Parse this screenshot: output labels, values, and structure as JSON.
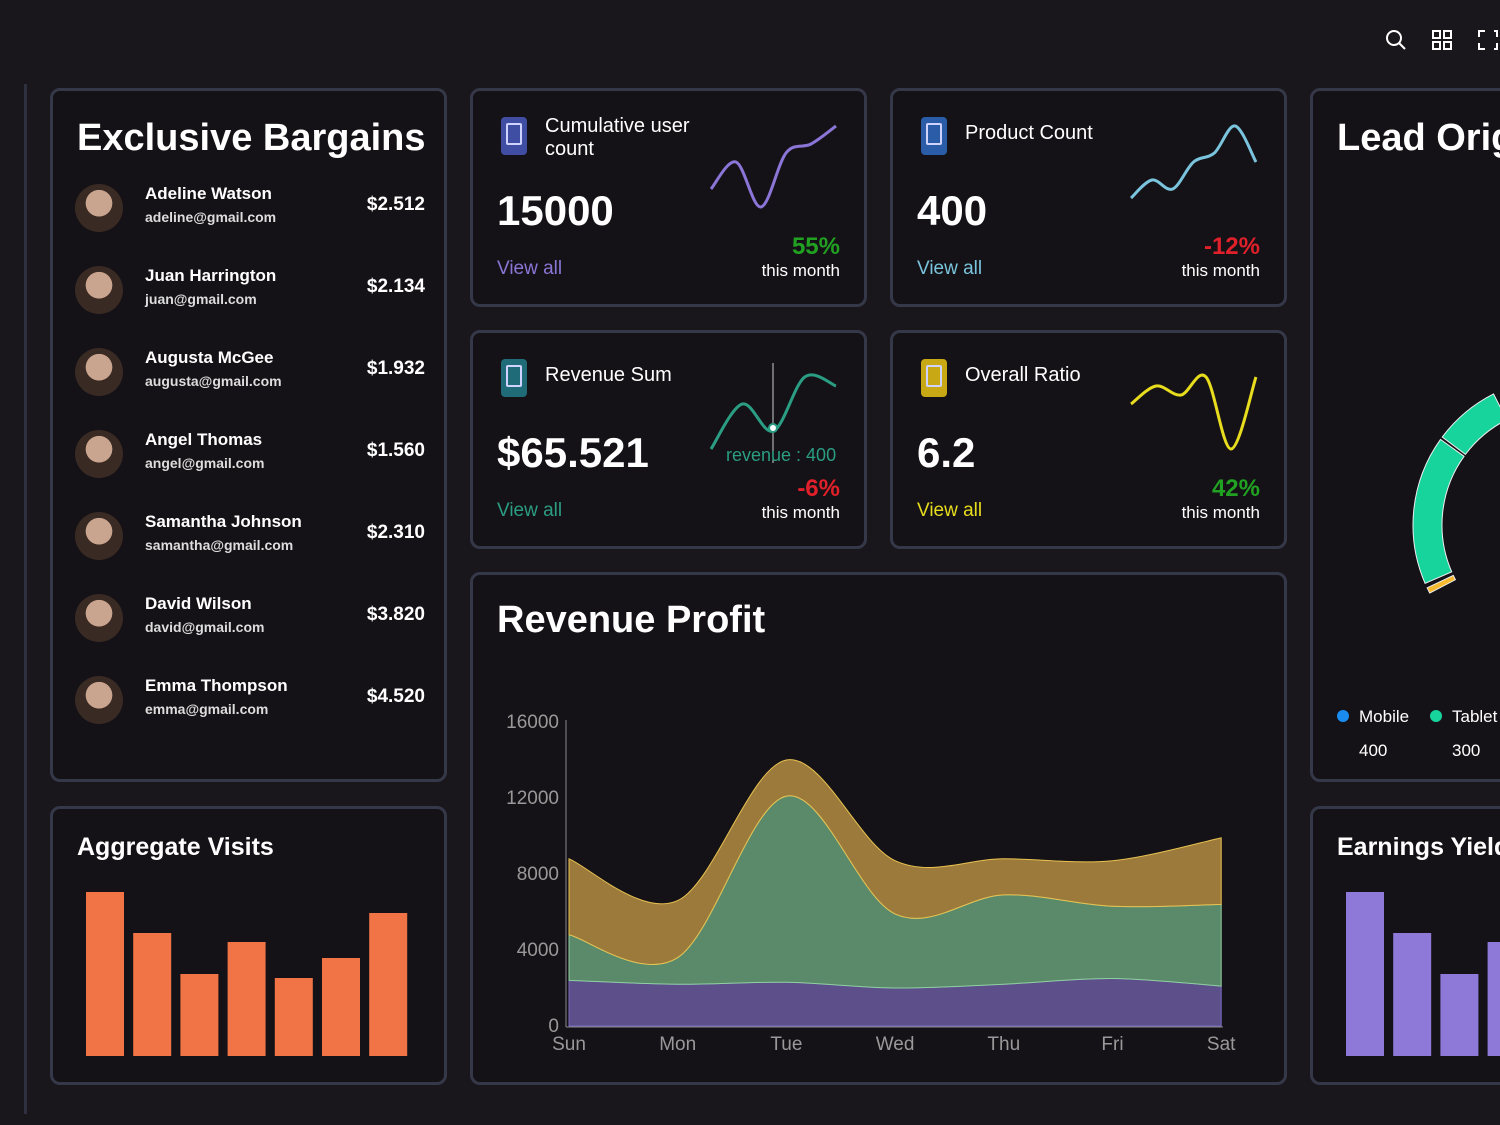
{
  "toolbar": {
    "icons": [
      "search-icon",
      "grid-icon",
      "fullscreen-icon"
    ]
  },
  "bargains": {
    "title": "Exclusive Bargains",
    "people": [
      {
        "name": "Adeline Watson",
        "email": "adeline@gmail.com",
        "amount": "$2.512"
      },
      {
        "name": "Juan Harrington",
        "email": "juan@gmail.com",
        "amount": "$2.134"
      },
      {
        "name": "Augusta McGee",
        "email": "augusta@gmail.com",
        "amount": "$1.932"
      },
      {
        "name": "Angel Thomas",
        "email": "angel@gmail.com",
        "amount": "$1.560"
      },
      {
        "name": "Samantha Johnson",
        "email": "samantha@gmail.com",
        "amount": "$2.310"
      },
      {
        "name": "David Wilson",
        "email": "david@gmail.com",
        "amount": "$3.820"
      },
      {
        "name": "Emma Thompson",
        "email": "emma@gmail.com",
        "amount": "$4.520"
      }
    ]
  },
  "stats": [
    {
      "title": "Cumulative user count",
      "value": "15000",
      "link": "View all",
      "change": "55%",
      "period": "this month",
      "color": "#8b75d7",
      "icon_color": "#3f4ea3",
      "change_color": "#21a121",
      "spark": [
        3,
        6,
        1,
        7,
        8,
        10
      ]
    },
    {
      "title": "Product Count",
      "value": "400",
      "link": "View all",
      "change": "-12%",
      "period": "this month",
      "color": "#7ac4dd",
      "icon_color": "#2a5ca8",
      "change_color": "#e0202a",
      "spark": [
        2,
        4,
        3,
        6,
        7,
        10,
        6
      ]
    },
    {
      "title": "Revenue Sum",
      "value": "$65.521",
      "link": "View all",
      "change": "-6%",
      "period": "this month",
      "color": "#2a9d83",
      "icon_color": "#1f6b78",
      "change_color": "#e0202a",
      "spark": [
        1,
        6,
        3,
        9,
        8
      ],
      "tooltip": "revenue : 400"
    },
    {
      "title": "Overall Ratio",
      "value": "6.2",
      "link": "View all",
      "change": "42%",
      "period": "this month",
      "color": "#e8dc1e",
      "icon_color": "#c8a814",
      "change_color": "#21a121",
      "spark": [
        6,
        8,
        7,
        9,
        1,
        9
      ]
    }
  ],
  "revenue_profit": {
    "title": "Revenue Profit",
    "chart_data": {
      "type": "area",
      "stacked": true,
      "categories": [
        "Sun",
        "Mon",
        "Tue",
        "Wed",
        "Thu",
        "Fri",
        "Sat"
      ],
      "ylim": [
        0,
        16000
      ],
      "yticks": [
        "0",
        "4000",
        "8000",
        "12000",
        "16000"
      ],
      "series": [
        {
          "values": [
            2400,
            2200,
            2300,
            2000,
            2200,
            2500,
            2100
          ],
          "color": "#5c4f8a"
        },
        {
          "values": [
            2400,
            1400,
            9800,
            3900,
            4700,
            3800,
            4300
          ],
          "color": "#5b8a6a"
        },
        {
          "values": [
            4000,
            3000,
            1900,
            2800,
            1900,
            2400,
            3500
          ],
          "color": "#9c7a3c"
        }
      ]
    }
  },
  "visits": {
    "title": "Aggregate Visits",
    "chart_data": {
      "type": "bar",
      "values": [
        164,
        123,
        82,
        114,
        78,
        98,
        143
      ],
      "color": "#f07446"
    }
  },
  "lead": {
    "title": "Lead Orig",
    "chart_data": {
      "type": "pie",
      "legend": [
        {
          "label": "Mobile",
          "value": "400",
          "color": "#1a8cf0"
        },
        {
          "label": "Tablet",
          "value": "300",
          "color": "#17d49c"
        }
      ],
      "other_color": "#f7b92d"
    }
  },
  "earnings": {
    "title": "Earnings Yield",
    "chart_data": {
      "type": "bar",
      "values": [
        164,
        123,
        82,
        114
      ],
      "color": "#8e78d8"
    }
  }
}
